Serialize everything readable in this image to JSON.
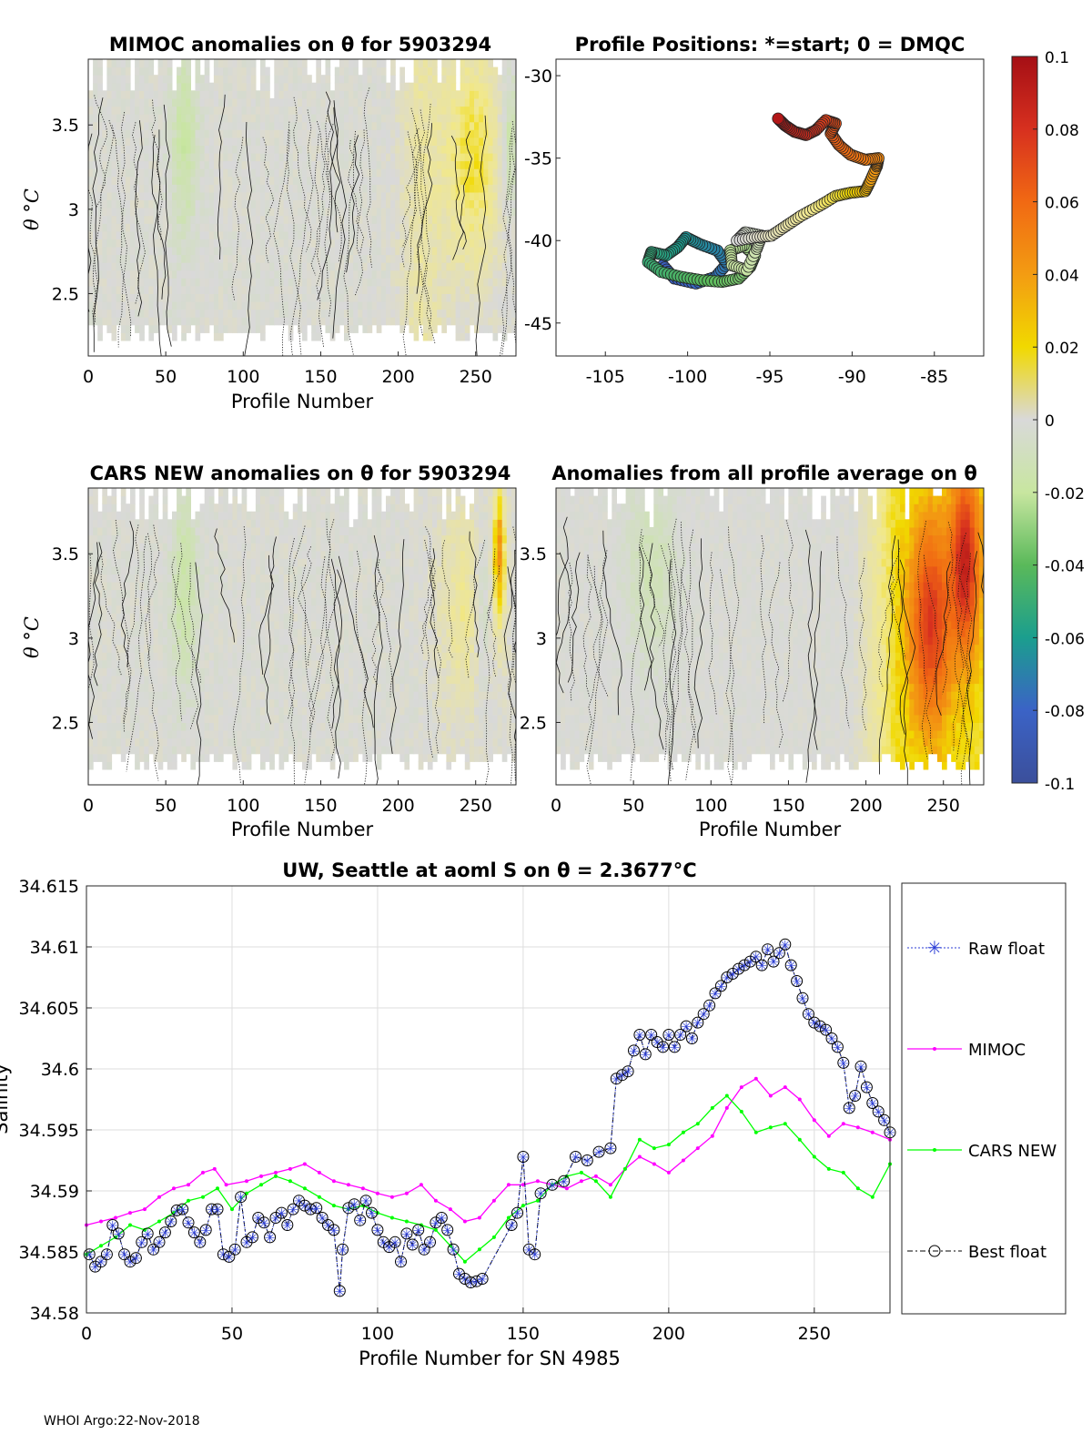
{
  "footer": "WHOI Argo:22-Nov-2018",
  "colors": {
    "raw": "#2b3dd6",
    "mimoc": "#ff00ff",
    "cars": "#00ff00",
    "best": "#000000",
    "axis": "#262626",
    "grid": "#dedede",
    "nan": "#ffffff"
  },
  "chart_data": [
    {
      "type": "heatmap",
      "name": "mimoc",
      "title": "MIMOC anomalies on θ  for 5903294",
      "xlabel": "Profile Number",
      "ylabel": "θ °C",
      "xlim": [
        0,
        276
      ],
      "ylim": [
        2.13,
        3.89
      ],
      "xticks": [
        "0",
        "50",
        "100",
        "150",
        "200",
        "250"
      ],
      "yticks": [
        "2.5",
        "3",
        "3.5"
      ],
      "pattern": "mostly near-zero anomalies (-0.01 to 0.01) with mild negative patches near profiles 55-70 and 265-276, mild positive (0.02-0.03) near profiles 200-265"
    },
    {
      "type": "scatter",
      "name": "positions",
      "title": "Profile Positions: *=start; 0 = DMQC",
      "xlim": [
        -108,
        -82
      ],
      "ylim": [
        -47,
        -29
      ],
      "xticks": [
        "-105",
        "-100",
        "-95",
        "-90",
        "-85"
      ],
      "yticks": [
        "-30",
        "-35",
        "-40",
        "-45"
      ],
      "track_note": "float track starts near (-100,-41) and drifts east to (-94,-32.6); color = anomaly",
      "track": [
        [
          -101.5,
          -41.5
        ],
        [
          -100.8,
          -42.3
        ],
        [
          -99.5,
          -42.6
        ],
        [
          -98.3,
          -42.2
        ],
        [
          -97.6,
          -41.4
        ],
        [
          -98.2,
          -40.6
        ],
        [
          -99.3,
          -40.2
        ],
        [
          -100.1,
          -39.8
        ],
        [
          -100.6,
          -40.4
        ],
        [
          -101.3,
          -40.9
        ],
        [
          -102.2,
          -40.7
        ],
        [
          -102.4,
          -41.3
        ],
        [
          -101.6,
          -41.9
        ],
        [
          -100.4,
          -42.2
        ],
        [
          -99.2,
          -42.4
        ],
        [
          -97.9,
          -42.5
        ],
        [
          -96.9,
          -42.3
        ],
        [
          -96.2,
          -41.6
        ],
        [
          -95.9,
          -40.9
        ],
        [
          -96.6,
          -40.3
        ],
        [
          -97.4,
          -40.6
        ],
        [
          -97.3,
          -41.5
        ],
        [
          -96.4,
          -41.8
        ],
        [
          -95.8,
          -40.5
        ],
        [
          -95.5,
          -39.7
        ],
        [
          -96.5,
          -39.5
        ],
        [
          -97.0,
          -40.0
        ],
        [
          -95.9,
          -39.8
        ],
        [
          -94.9,
          -39.7
        ],
        [
          -94.0,
          -39.1
        ],
        [
          -93.1,
          -38.5
        ],
        [
          -92.0,
          -37.9
        ],
        [
          -91.0,
          -37.3
        ],
        [
          -90.1,
          -37.1
        ],
        [
          -89.2,
          -37.0
        ],
        [
          -88.9,
          -36.4
        ],
        [
          -88.5,
          -35.5
        ],
        [
          -88.4,
          -35.0
        ],
        [
          -89.2,
          -35.1
        ],
        [
          -90.1,
          -34.8
        ],
        [
          -90.8,
          -34.2
        ],
        [
          -91.3,
          -33.5
        ],
        [
          -91.0,
          -32.9
        ],
        [
          -91.6,
          -32.7
        ],
        [
          -92.2,
          -33.3
        ],
        [
          -92.8,
          -33.6
        ],
        [
          -93.5,
          -33.4
        ],
        [
          -94.1,
          -33.0
        ],
        [
          -94.5,
          -32.6
        ]
      ],
      "colorbar": {
        "min": -0.1,
        "max": 0.1,
        "ticks": [
          "0.1",
          "0.08",
          "0.06",
          "0.04",
          "0.02",
          "0",
          "-0.02",
          "-0.04",
          "-0.06",
          "-0.08",
          "-0.1"
        ]
      }
    },
    {
      "type": "heatmap",
      "name": "cars",
      "title": "CARS NEW anomalies on θ for 5903294",
      "xlabel": "Profile Number",
      "ylabel": "θ °C",
      "xlim": [
        0,
        276
      ],
      "ylim": [
        2.13,
        3.89
      ],
      "xticks": [
        "0",
        "50",
        "100",
        "150",
        "200",
        "250"
      ],
      "yticks": [
        "2.5",
        "3",
        "3.5"
      ],
      "pattern": "near-zero anomalies with mild negative patch near profiles 55-70, positive streak (0.03-0.04) near profile 265"
    },
    {
      "type": "heatmap",
      "name": "avg",
      "title": "Anomalies from all profile average on θ",
      "xlabel": "Profile Number",
      "ylabel": "",
      "xlim": [
        0,
        276
      ],
      "ylim": [
        2.13,
        3.89
      ],
      "xticks": [
        "0",
        "50",
        "100",
        "150",
        "200",
        "250"
      ],
      "yticks": [
        "2.5",
        "3",
        "3.5"
      ],
      "pattern": "near-zero for profiles 0-190, increasing positive anomalies after 190, peaking ~0.08 near profiles 240 and 263 at θ 3.0-3.7"
    },
    {
      "type": "line",
      "name": "salinity",
      "title": "UW, Seattle at aoml S on θ = 2.3677°C",
      "xlabel": "Profile Number for SN 4985",
      "ylabel": "Salinity",
      "xlim": [
        0,
        276
      ],
      "ylim": [
        34.58,
        34.615
      ],
      "xticks": [
        "0",
        "50",
        "100",
        "150",
        "200",
        "250"
      ],
      "yticks": [
        "34.58",
        "34.585",
        "34.59",
        "34.595",
        "34.6",
        "34.605",
        "34.61",
        "34.615"
      ],
      "legend": [
        "Raw float",
        "MIMOC",
        "CARS NEW",
        "Best float"
      ],
      "series": [
        {
          "name": "Raw float / Best float",
          "x": [
            1,
            3,
            5,
            7,
            9,
            11,
            13,
            15,
            17,
            19,
            21,
            23,
            25,
            27,
            29,
            31,
            33,
            35,
            37,
            39,
            41,
            43,
            45,
            47,
            49,
            51,
            53,
            55,
            57,
            59,
            61,
            63,
            65,
            67,
            69,
            71,
            73,
            75,
            77,
            79,
            81,
            83,
            85,
            87,
            88,
            90,
            92,
            94,
            96,
            98,
            100,
            102,
            104,
            106,
            108,
            110,
            112,
            114,
            116,
            118,
            120,
            122,
            124,
            126,
            128,
            130,
            132,
            134,
            136,
            146,
            148,
            150,
            152,
            154,
            156,
            160,
            164,
            168,
            172,
            176,
            180,
            182,
            184,
            186,
            188,
            190,
            192,
            194,
            196,
            198,
            200,
            202,
            204,
            206,
            208,
            210,
            212,
            214,
            216,
            218,
            220,
            222,
            224,
            226,
            228,
            230,
            232,
            234,
            236,
            238,
            240,
            242,
            244,
            246,
            248,
            250,
            252,
            254,
            256,
            258,
            260,
            262,
            264,
            266,
            268,
            270,
            272,
            274,
            276
          ],
          "values": [
            34.5848,
            34.5838,
            34.5842,
            34.5848,
            34.5872,
            34.5865,
            34.5848,
            34.5842,
            34.5845,
            34.5858,
            34.5865,
            34.5852,
            34.5858,
            34.5866,
            34.5875,
            34.5884,
            34.5885,
            34.5874,
            34.5866,
            34.5858,
            34.5868,
            34.5885,
            34.5885,
            34.5848,
            34.5846,
            34.5852,
            34.5895,
            34.5858,
            34.5862,
            34.5878,
            34.5874,
            34.5862,
            34.5878,
            34.5882,
            34.5872,
            34.5885,
            34.5892,
            34.5888,
            34.5885,
            34.5886,
            34.5878,
            34.5872,
            34.5868,
            34.5818,
            34.5852,
            34.5886,
            34.5889,
            34.5876,
            34.5892,
            34.5882,
            34.5868,
            34.5858,
            34.5854,
            34.5858,
            34.5842,
            34.5865,
            34.5856,
            34.5868,
            34.5852,
            34.5858,
            34.5874,
            34.5878,
            34.5868,
            34.5852,
            34.5832,
            34.5828,
            34.5825,
            34.5826,
            34.5828,
            34.5872,
            34.5882,
            34.5928,
            34.5852,
            34.5848,
            34.5898,
            34.5905,
            34.5908,
            34.5928,
            34.5925,
            34.5932,
            34.5935,
            34.5992,
            34.5995,
            34.5998,
            34.6015,
            34.6028,
            34.6012,
            34.6028,
            34.6022,
            34.6018,
            34.6028,
            34.6018,
            34.6028,
            34.6035,
            34.6025,
            34.6038,
            34.6045,
            34.6052,
            34.6062,
            34.6068,
            34.6075,
            34.6078,
            34.6082,
            34.6085,
            34.6088,
            34.6092,
            34.6085,
            34.6098,
            34.6088,
            34.6095,
            34.6102,
            34.6085,
            34.6072,
            34.6058,
            34.6045,
            34.6038,
            34.6035,
            34.6032,
            34.6025,
            34.6018,
            34.6005,
            34.5968,
            34.5978,
            34.6002,
            34.5985,
            34.5972,
            34.5965,
            34.5958,
            34.5948
          ]
        },
        {
          "name": "MIMOC",
          "x": [
            0,
            5,
            10,
            15,
            20,
            25,
            30,
            35,
            40,
            44,
            48,
            55,
            60,
            65,
            70,
            75,
            80,
            85,
            90,
            95,
            100,
            105,
            110,
            115,
            120,
            125,
            130,
            135,
            140,
            145,
            150,
            155,
            160,
            165,
            170,
            175,
            180,
            185,
            190,
            195,
            200,
            205,
            210,
            215,
            220,
            225,
            230,
            235,
            240,
            245,
            250,
            255,
            260,
            265,
            270,
            276
          ],
          "values": [
            34.5872,
            34.5875,
            34.5878,
            34.5882,
            34.5885,
            34.5895,
            34.5902,
            34.5905,
            34.5915,
            34.5918,
            34.5905,
            34.5908,
            34.5912,
            34.5915,
            34.5918,
            34.5922,
            34.5915,
            34.5908,
            34.5905,
            34.5902,
            34.5898,
            34.5895,
            34.5898,
            34.5905,
            34.5892,
            34.5885,
            34.5875,
            34.5878,
            34.5892,
            34.5905,
            34.5905,
            34.5908,
            34.5905,
            34.5902,
            34.5908,
            34.5912,
            34.5905,
            34.5918,
            34.5928,
            34.5922,
            34.5915,
            34.5925,
            34.5935,
            34.5945,
            34.5968,
            34.5985,
            34.5992,
            34.5978,
            34.5985,
            34.5975,
            34.5958,
            34.5945,
            34.5955,
            34.5952,
            34.5948,
            34.5942
          ]
        },
        {
          "name": "CARS NEW",
          "x": [
            0,
            5,
            10,
            15,
            20,
            25,
            30,
            35,
            40,
            45,
            50,
            55,
            60,
            65,
            70,
            75,
            80,
            85,
            90,
            95,
            100,
            105,
            110,
            115,
            120,
            125,
            130,
            135,
            140,
            145,
            150,
            155,
            160,
            165,
            170,
            175,
            180,
            185,
            190,
            195,
            200,
            205,
            210,
            215,
            220,
            225,
            230,
            235,
            240,
            245,
            250,
            255,
            260,
            265,
            270,
            276
          ],
          "values": [
            34.5848,
            34.5855,
            34.5862,
            34.5872,
            34.5868,
            34.5875,
            34.5882,
            34.5892,
            34.5895,
            34.5902,
            34.5885,
            34.5898,
            34.5905,
            34.5912,
            34.5908,
            34.5902,
            34.5895,
            34.5888,
            34.5885,
            34.5888,
            34.5882,
            34.5878,
            34.5875,
            34.5872,
            34.5868,
            34.5855,
            34.5842,
            34.5852,
            34.5862,
            34.5878,
            34.5888,
            34.5892,
            34.5905,
            34.5912,
            34.5915,
            34.5908,
            34.5895,
            34.5918,
            34.5942,
            34.5935,
            34.5938,
            34.5948,
            34.5955,
            34.5968,
            34.5978,
            34.5965,
            34.5948,
            34.5952,
            34.5955,
            34.5942,
            34.5928,
            34.5918,
            34.5915,
            34.5902,
            34.5895,
            34.5922
          ]
        }
      ]
    }
  ]
}
